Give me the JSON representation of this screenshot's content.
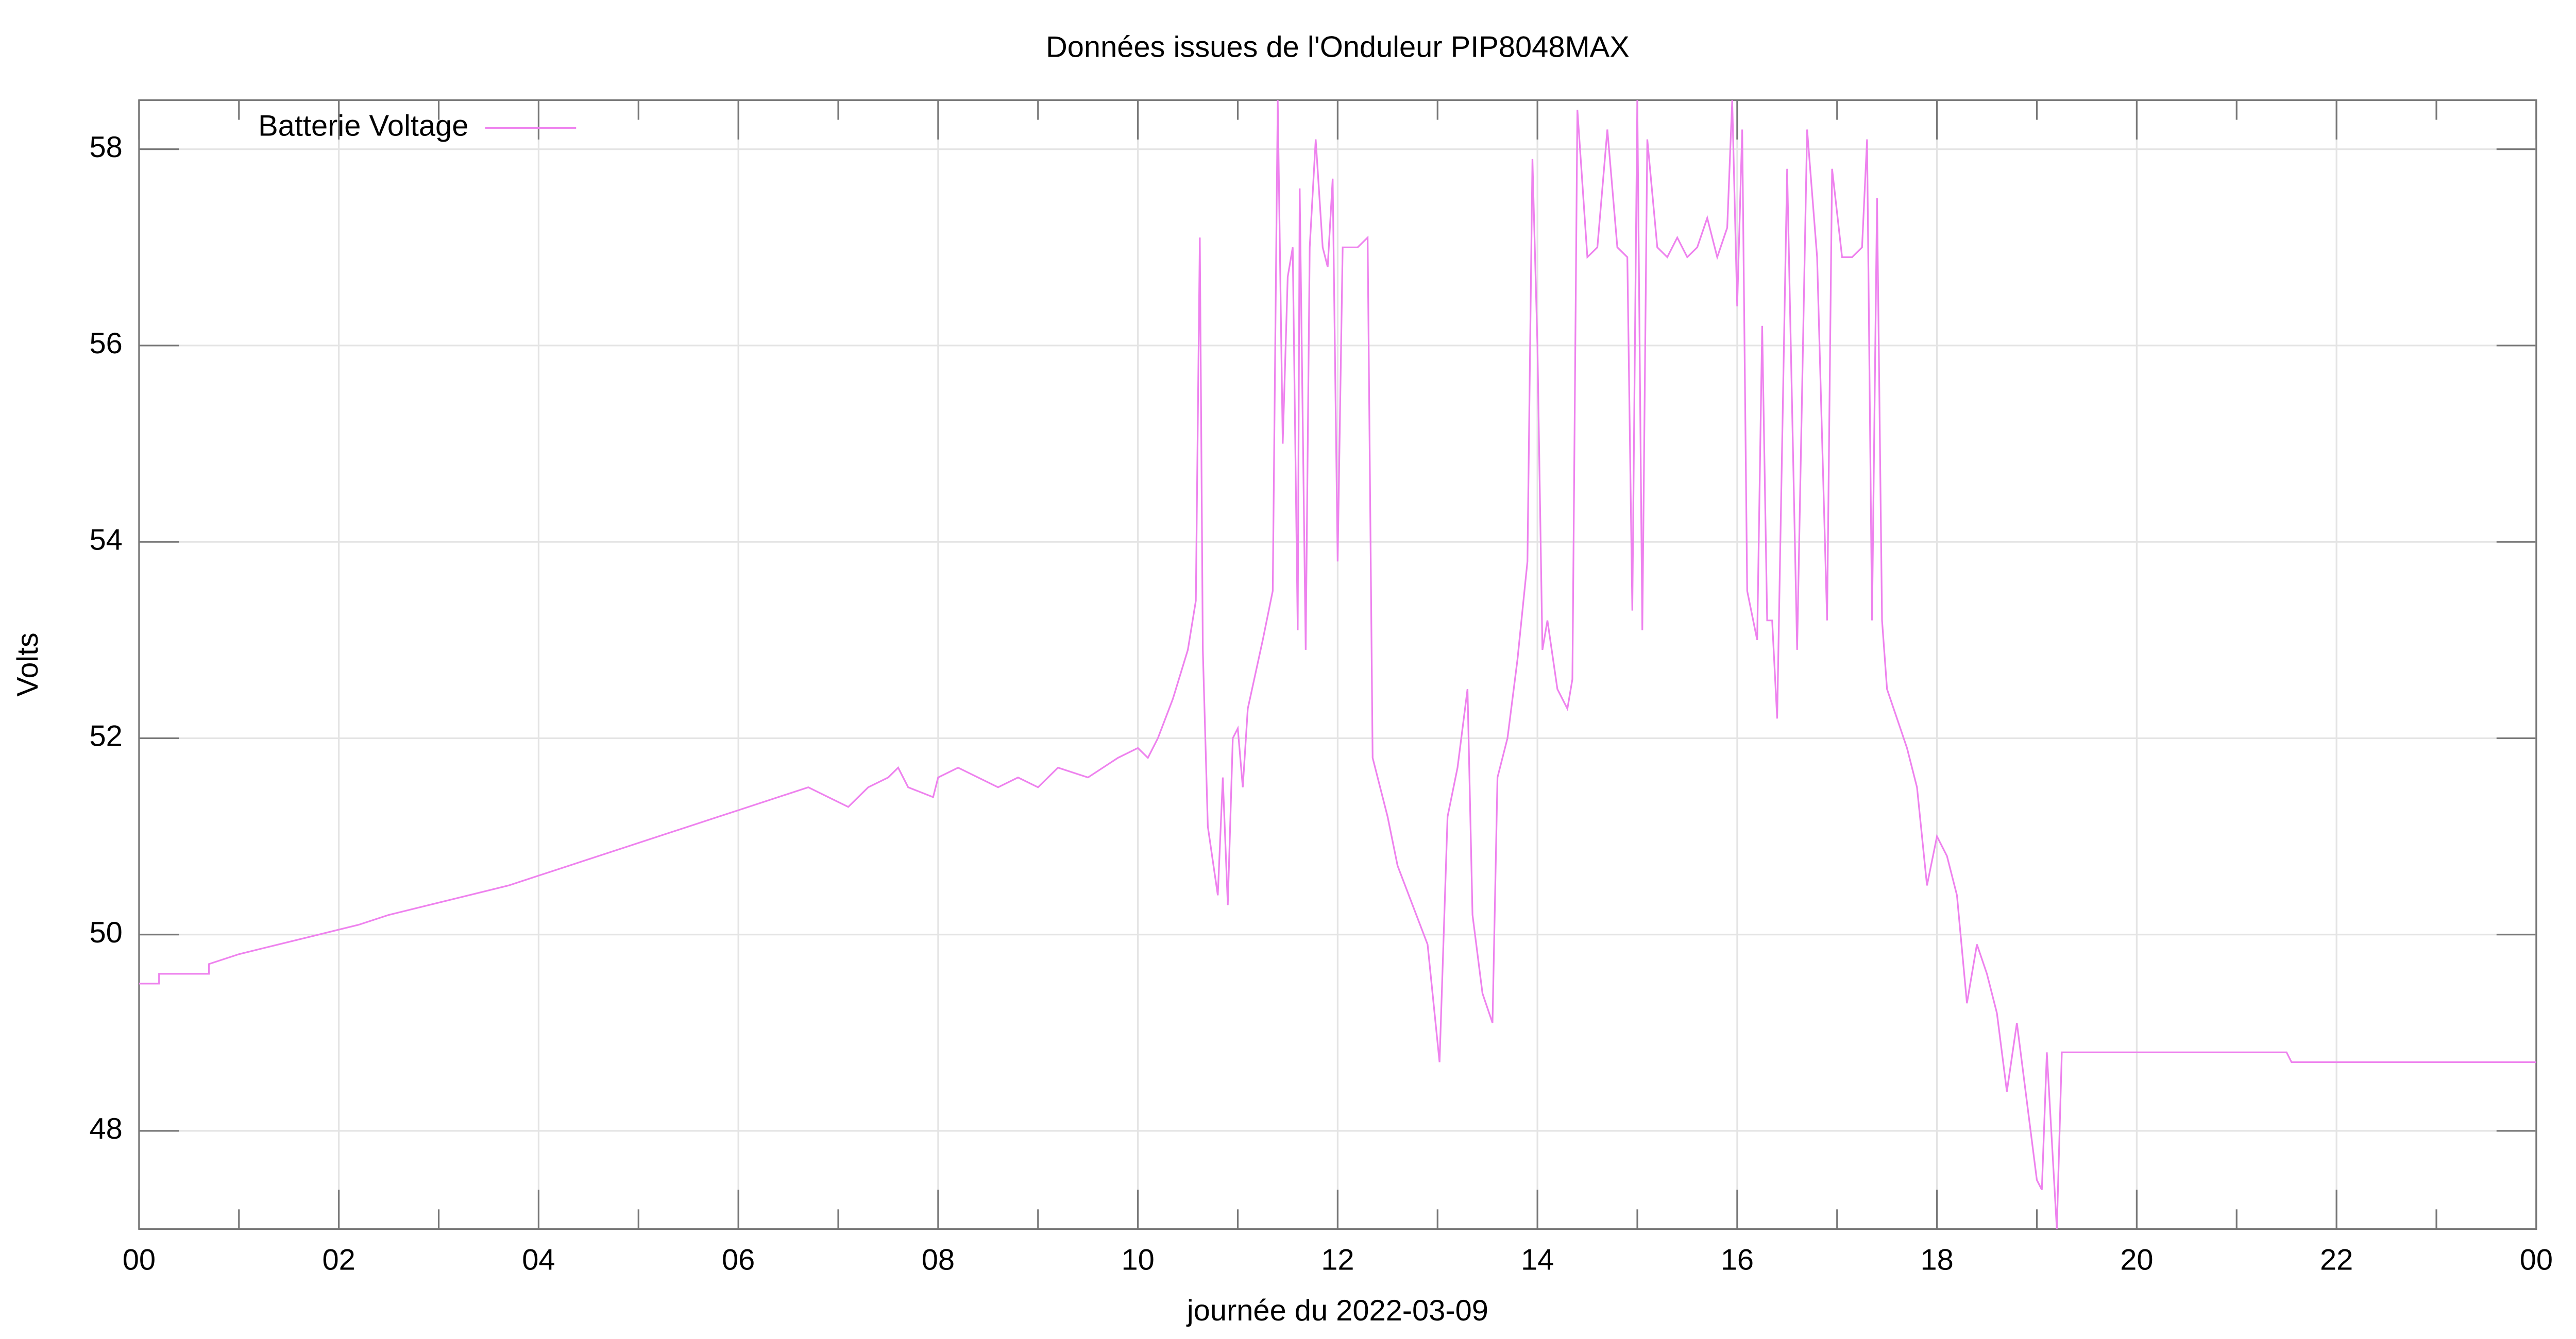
{
  "chart_data": {
    "type": "line",
    "title": "Données issues de l'Onduleur PIP8048MAX",
    "x_label": "journée du 2022-03-09",
    "y_label": "Volts",
    "x": [
      0,
      0.2,
      0.2,
      0.7,
      0.7,
      1.0,
      1.4,
      1.8,
      2.2,
      2.5,
      2.9,
      3.3,
      3.7,
      4.0,
      4.3,
      4.6,
      4.9,
      5.2,
      5.5,
      5.8,
      6.1,
      6.4,
      6.7,
      6.9,
      7.1,
      7.3,
      7.5,
      7.6,
      7.7,
      7.95,
      8.0,
      8.2,
      8.4,
      8.6,
      8.8,
      9.0,
      9.2,
      9.5,
      9.8,
      10.0,
      10.1,
      10.2,
      10.35,
      10.5,
      10.58,
      10.62,
      10.65,
      10.7,
      10.8,
      10.85,
      10.9,
      10.95,
      11.0,
      11.05,
      11.1,
      11.25,
      11.35,
      11.4,
      11.45,
      11.5,
      11.55,
      11.6,
      11.62,
      11.68,
      11.72,
      11.78,
      11.85,
      11.9,
      11.95,
      12.0,
      12.05,
      12.2,
      12.3,
      12.35,
      12.5,
      12.6,
      12.75,
      12.9,
      12.95,
      13.02,
      13.1,
      13.2,
      13.3,
      13.35,
      13.45,
      13.55,
      13.6,
      13.7,
      13.8,
      13.9,
      13.95,
      14.0,
      14.05,
      14.1,
      14.2,
      14.3,
      14.35,
      14.4,
      14.5,
      14.6,
      14.7,
      14.8,
      14.9,
      14.95,
      15.0,
      15.05,
      15.1,
      15.2,
      15.3,
      15.4,
      15.5,
      15.6,
      15.7,
      15.8,
      15.9,
      15.95,
      16.0,
      16.05,
      16.1,
      16.2,
      16.25,
      16.3,
      16.35,
      16.4,
      16.5,
      16.6,
      16.7,
      16.8,
      16.9,
      16.95,
      17.05,
      17.15,
      17.25,
      17.3,
      17.35,
      17.4,
      17.45,
      17.5,
      17.6,
      17.7,
      17.8,
      17.9,
      18.0,
      18.1,
      18.2,
      18.3,
      18.4,
      18.5,
      18.6,
      18.7,
      18.8,
      18.9,
      19.0,
      19.05,
      19.1,
      19.2,
      19.25,
      21.5,
      21.55,
      21.8,
      24
    ],
    "series": [
      {
        "name": "Batterie Voltage",
        "color": "#ee82ee",
        "values": [
          49.5,
          49.5,
          49.6,
          49.6,
          49.7,
          49.8,
          49.9,
          50.0,
          50.1,
          50.2,
          50.3,
          50.4,
          50.5,
          50.6,
          50.7,
          50.8,
          50.9,
          51.0,
          51.1,
          51.2,
          51.3,
          51.4,
          51.5,
          51.4,
          51.3,
          51.5,
          51.6,
          51.7,
          51.5,
          51.4,
          51.6,
          51.7,
          51.6,
          51.5,
          51.6,
          51.5,
          51.7,
          51.6,
          51.8,
          51.9,
          51.8,
          52.0,
          52.4,
          52.9,
          53.4,
          57.1,
          52.9,
          51.1,
          50.4,
          51.6,
          50.3,
          52.0,
          52.1,
          51.5,
          52.3,
          53.0,
          53.5,
          58.5,
          55.0,
          56.7,
          57.0,
          53.1,
          57.6,
          52.9,
          57.0,
          58.1,
          57.0,
          56.8,
          57.7,
          53.8,
          57.0,
          57.0,
          57.1,
          51.8,
          51.2,
          50.7,
          50.3,
          49.9,
          49.4,
          48.7,
          51.2,
          51.7,
          52.5,
          50.2,
          49.4,
          49.1,
          51.6,
          52.0,
          52.8,
          53.8,
          57.9,
          56.0,
          52.9,
          53.2,
          52.5,
          52.3,
          52.6,
          58.4,
          56.9,
          57.0,
          58.2,
          57.0,
          56.9,
          53.3,
          58.5,
          53.1,
          58.1,
          57.0,
          56.9,
          57.1,
          56.9,
          57.0,
          57.3,
          56.9,
          57.2,
          58.5,
          56.4,
          58.2,
          53.5,
          53.0,
          56.2,
          53.2,
          53.2,
          52.2,
          57.8,
          52.9,
          58.2,
          56.9,
          53.2,
          57.8,
          56.9,
          56.9,
          57.0,
          58.1,
          53.2,
          57.5,
          53.2,
          52.5,
          52.2,
          51.9,
          51.5,
          50.5,
          51.0,
          50.8,
          50.4,
          49.3,
          49.9,
          49.6,
          49.2,
          48.4,
          49.1,
          48.3,
          47.5,
          47.4,
          48.8,
          47.0,
          48.8,
          48.8,
          48.7,
          48.7,
          48.7
        ]
      }
    ],
    "xlim": [
      0,
      24
    ],
    "xticks": [
      {
        "value": 0,
        "label": "00"
      },
      {
        "value": 2,
        "label": "02"
      },
      {
        "value": 4,
        "label": "04"
      },
      {
        "value": 6,
        "label": "06"
      },
      {
        "value": 8,
        "label": "08"
      },
      10,
      12,
      14,
      16,
      18,
      20,
      22,
      {
        "value": 24,
        "label": "00"
      }
    ],
    "x_minor_ticks": [
      1,
      3,
      5,
      7,
      9,
      11,
      13,
      15,
      17,
      19,
      21,
      23
    ],
    "ylim": [
      47,
      58.5
    ],
    "yticks": [
      48,
      50,
      52,
      54,
      56,
      58
    ],
    "grid": true,
    "legend": "top-left"
  }
}
